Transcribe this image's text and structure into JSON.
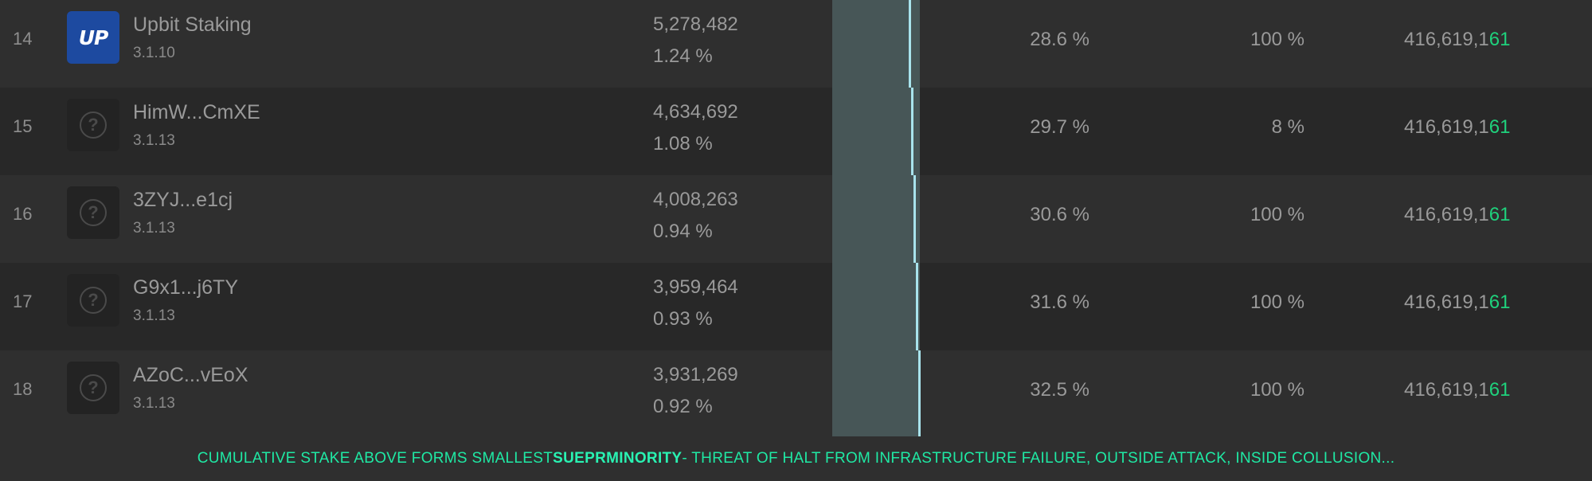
{
  "rows": [
    {
      "rank": "14",
      "name": "Upbit Staking",
      "version": "3.1.10",
      "stake": "5,278,482",
      "stake_pct": "1.24 %",
      "cumulative": "28.6 %",
      "skip": "100 %",
      "slot_prefix": "416,619,1",
      "slot_suffix": "61",
      "avatar": "upbit-logo",
      "avatar_text": "UP"
    },
    {
      "rank": "15",
      "name": "HimW...CmXE",
      "version": "3.1.13",
      "stake": "4,634,692",
      "stake_pct": "1.08 %",
      "cumulative": "29.7 %",
      "skip": "8 %",
      "slot_prefix": "416,619,1",
      "slot_suffix": "61",
      "avatar": "question-mark-icon"
    },
    {
      "rank": "16",
      "name": "3ZYJ...e1cj",
      "version": "3.1.13",
      "stake": "4,008,263",
      "stake_pct": "0.94 %",
      "cumulative": "30.6 %",
      "skip": "100 %",
      "slot_prefix": "416,619,1",
      "slot_suffix": "61",
      "avatar": "question-mark-icon"
    },
    {
      "rank": "17",
      "name": "G9x1...j6TY",
      "version": "3.1.13",
      "stake": "3,959,464",
      "stake_pct": "0.93 %",
      "cumulative": "31.6 %",
      "skip": "100 %",
      "slot_prefix": "416,619,1",
      "slot_suffix": "61",
      "avatar": "question-mark-icon"
    },
    {
      "rank": "18",
      "name": "AZoC...vEoX",
      "version": "3.1.13",
      "stake": "3,931,269",
      "stake_pct": "0.92 %",
      "cumulative": "32.5 %",
      "skip": "100 %",
      "slot_prefix": "416,619,1",
      "slot_suffix": "61",
      "avatar": "question-mark-icon"
    }
  ],
  "footer": {
    "text_before": "CUMULATIVE STAKE ABOVE FORMS SMALLEST ",
    "text_bold": "SUEPRMINORITY",
    "text_after": " - THREAT OF HALT FROM INFRASTRUCTURE FAILURE, OUTSIDE ATTACK, INSIDE COLLUSION..."
  },
  "colors": {
    "slot_highlight": "#1fd17c",
    "footer_text": "#1fe9a4",
    "cumulative_bar": "#475657",
    "cumulative_line": "#a8e3ec",
    "upbit_brand": "#1d4aa0"
  }
}
